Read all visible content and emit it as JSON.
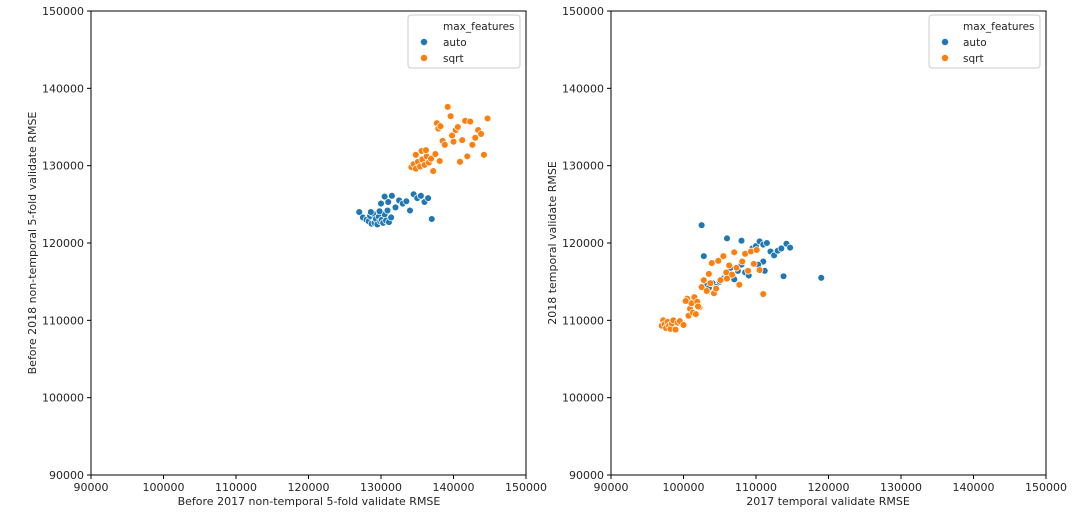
{
  "colors": {
    "auto": "#1f77b4",
    "sqrt": "#ff7f0e"
  },
  "chart_data": [
    {
      "type": "scatter",
      "xlabel": "Before 2017 non-temporal 5-fold validate RMSE",
      "ylabel": "Before 2018 non-temporal 5-fold validate RMSE",
      "xlim": [
        90000,
        150000
      ],
      "ylim": [
        90000,
        150000
      ],
      "xticks": [
        90000,
        100000,
        110000,
        120000,
        130000,
        140000,
        150000
      ],
      "yticks": [
        90000,
        100000,
        110000,
        120000,
        130000,
        140000,
        150000
      ],
      "legend": {
        "title": "max_features",
        "entries": [
          "auto",
          "sqrt"
        ],
        "position": "top-right"
      },
      "grid": false,
      "series": [
        {
          "name": "auto",
          "points": [
            [
              127000,
              124000
            ],
            [
              127500,
              123300
            ],
            [
              128000,
              123000
            ],
            [
              128300,
              122800
            ],
            [
              128500,
              123500
            ],
            [
              128700,
              122500
            ],
            [
              128900,
              123800
            ],
            [
              129100,
              122600
            ],
            [
              129300,
              123100
            ],
            [
              129500,
              122400
            ],
            [
              129700,
              123400
            ],
            [
              129900,
              122800
            ],
            [
              130100,
              123000
            ],
            [
              130300,
              122600
            ],
            [
              130500,
              123700
            ],
            [
              130700,
              122900
            ],
            [
              130900,
              124200
            ],
            [
              131100,
              122700
            ],
            [
              131400,
              123300
            ],
            [
              130000,
              125100
            ],
            [
              130500,
              126000
            ],
            [
              131000,
              125300
            ],
            [
              131500,
              126100
            ],
            [
              132000,
              124600
            ],
            [
              132500,
              125500
            ],
            [
              133000,
              125100
            ],
            [
              133500,
              125400
            ],
            [
              134000,
              124200
            ],
            [
              134500,
              126300
            ],
            [
              135000,
              125800
            ],
            [
              135500,
              126100
            ],
            [
              136000,
              125300
            ],
            [
              136500,
              125800
            ],
            [
              137000,
              123100
            ],
            [
              128600,
              124000
            ],
            [
              129800,
              124100
            ]
          ]
        },
        {
          "name": "sqrt",
          "points": [
            [
              134200,
              129800
            ],
            [
              134500,
              130200
            ],
            [
              134800,
              129600
            ],
            [
              135100,
              130500
            ],
            [
              135400,
              129900
            ],
            [
              135700,
              130800
            ],
            [
              136000,
              130100
            ],
            [
              136300,
              131200
            ],
            [
              136600,
              130400
            ],
            [
              136900,
              130900
            ],
            [
              137200,
              129300
            ],
            [
              134800,
              131400
            ],
            [
              135600,
              131900
            ],
            [
              136200,
              132000
            ],
            [
              137500,
              131500
            ],
            [
              137700,
              135500
            ],
            [
              137900,
              134800
            ],
            [
              138200,
              135100
            ],
            [
              138500,
              133200
            ],
            [
              138800,
              132700
            ],
            [
              139200,
              137600
            ],
            [
              139600,
              136400
            ],
            [
              140000,
              133100
            ],
            [
              140300,
              134600
            ],
            [
              140600,
              135000
            ],
            [
              140900,
              130500
            ],
            [
              141200,
              133300
            ],
            [
              141600,
              135800
            ],
            [
              141900,
              131200
            ],
            [
              142300,
              135700
            ],
            [
              142600,
              132700
            ],
            [
              143000,
              133600
            ],
            [
              143400,
              134600
            ],
            [
              143800,
              134100
            ],
            [
              144200,
              131400
            ],
            [
              144700,
              136100
            ],
            [
              138100,
              130600
            ],
            [
              139800,
              133900
            ]
          ]
        }
      ]
    },
    {
      "type": "scatter",
      "xlabel": "2017 temporal validate RMSE",
      "ylabel": "2018 temporal validate RMSE",
      "xlim": [
        90000,
        150000
      ],
      "ylim": [
        90000,
        150000
      ],
      "xticks": [
        90000,
        100000,
        110000,
        120000,
        130000,
        140000,
        150000
      ],
      "yticks": [
        90000,
        100000,
        110000,
        120000,
        130000,
        140000,
        150000
      ],
      "legend": {
        "title": "max_features",
        "entries": [
          "auto",
          "sqrt"
        ],
        "position": "top-right"
      },
      "grid": false,
      "series": [
        {
          "name": "auto",
          "points": [
            [
              102500,
              122300
            ],
            [
              103000,
              114500
            ],
            [
              103500,
              114200
            ],
            [
              104000,
              114800
            ],
            [
              104500,
              114000
            ],
            [
              105000,
              115000
            ],
            [
              105500,
              115400
            ],
            [
              106000,
              115600
            ],
            [
              106000,
              120600
            ],
            [
              106500,
              116800
            ],
            [
              107000,
              115300
            ],
            [
              107500,
              116400
            ],
            [
              108000,
              117200
            ],
            [
              108000,
              120300
            ],
            [
              108500,
              116200
            ],
            [
              109000,
              115800
            ],
            [
              109500,
              119300
            ],
            [
              110000,
              119600
            ],
            [
              110500,
              120200
            ],
            [
              111000,
              119800
            ],
            [
              111000,
              117600
            ],
            [
              111500,
              120000
            ],
            [
              111200,
              116400
            ],
            [
              112000,
              118900
            ],
            [
              112500,
              118400
            ],
            [
              113000,
              119000
            ],
            [
              113500,
              119300
            ],
            [
              113800,
              115700
            ],
            [
              114200,
              119900
            ],
            [
              114700,
              119400
            ],
            [
              119000,
              115500
            ],
            [
              110300,
              117200
            ],
            [
              102800,
              118300
            ],
            [
              104500,
              114300
            ]
          ]
        },
        {
          "name": "sqrt",
          "points": [
            [
              97000,
              109300
            ],
            [
              97200,
              110000
            ],
            [
              97400,
              109500
            ],
            [
              97600,
              109000
            ],
            [
              97800,
              109800
            ],
            [
              98000,
              109300
            ],
            [
              98200,
              108900
            ],
            [
              98400,
              109600
            ],
            [
              98600,
              110000
            ],
            [
              98900,
              108800
            ],
            [
              99200,
              109700
            ],
            [
              99500,
              109900
            ],
            [
              100000,
              109400
            ],
            [
              100500,
              112800
            ],
            [
              100700,
              110600
            ],
            [
              100900,
              111500
            ],
            [
              101100,
              112200
            ],
            [
              101300,
              111000
            ],
            [
              101500,
              113000
            ],
            [
              101700,
              110800
            ],
            [
              101900,
              112400
            ],
            [
              102200,
              111700
            ],
            [
              102500,
              114300
            ],
            [
              102800,
              115200
            ],
            [
              103200,
              113800
            ],
            [
              103500,
              116000
            ],
            [
              103900,
              117400
            ],
            [
              104200,
              113500
            ],
            [
              104500,
              114100
            ],
            [
              104800,
              117700
            ],
            [
              105100,
              115200
            ],
            [
              105500,
              118300
            ],
            [
              105900,
              116200
            ],
            [
              106300,
              117100
            ],
            [
              106700,
              115900
            ],
            [
              107000,
              118800
            ],
            [
              107300,
              116800
            ],
            [
              107700,
              114600
            ],
            [
              108100,
              117600
            ],
            [
              108500,
              118600
            ],
            [
              108900,
              116400
            ],
            [
              109300,
              118900
            ],
            [
              109700,
              117300
            ],
            [
              110100,
              119100
            ],
            [
              110500,
              116500
            ],
            [
              111000,
              113400
            ],
            [
              103700,
              114800
            ],
            [
              106000,
              115400
            ],
            [
              100300,
              112500
            ],
            [
              102000,
              111800
            ]
          ]
        }
      ]
    }
  ]
}
